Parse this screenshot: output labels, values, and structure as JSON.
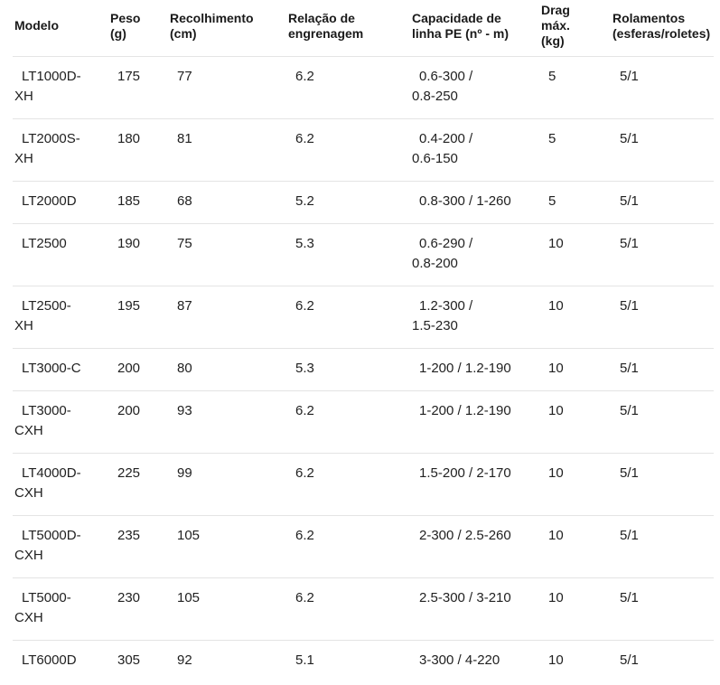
{
  "colors": {
    "background": "#ffffff",
    "header_text": "#1a1a1a",
    "body_text": "#212121",
    "divider": "#e4e4e4"
  },
  "table": {
    "columns": [
      {
        "id": "modelo",
        "label": "Modelo"
      },
      {
        "id": "peso",
        "label": "Peso\n(g)"
      },
      {
        "id": "recolhimento",
        "label": "Recolhimento\n(cm)"
      },
      {
        "id": "relacao",
        "label": "Relação de\nengrenagem"
      },
      {
        "id": "capacidade",
        "label": "Capacidade de\nlinha PE (nº - m)"
      },
      {
        "id": "drag",
        "label": "Drag\nmáx.\n(kg)"
      },
      {
        "id": "rolamentos",
        "label": "Rolamentos\n(esferas/roletes)"
      }
    ],
    "rows": [
      [
        "LT1000D-\nXH",
        "175",
        "77",
        "6.2",
        "0.6-300 /\n0.8-250",
        "5",
        "5/1"
      ],
      [
        "LT2000S-\nXH",
        "180",
        "81",
        "6.2",
        "0.4-200 /\n0.6-150",
        "5",
        "5/1"
      ],
      [
        "LT2000D",
        "185",
        "68",
        "5.2",
        "0.8-300 / 1-260",
        "5",
        "5/1"
      ],
      [
        "LT2500",
        "190",
        "75",
        "5.3",
        "0.6-290 /\n0.8-200",
        "10",
        "5/1"
      ],
      [
        "LT2500-\nXH",
        "195",
        "87",
        "6.2",
        "1.2-300 /\n1.5-230",
        "10",
        "5/1"
      ],
      [
        "LT3000-C",
        "200",
        "80",
        "5.3",
        "1-200 / 1.2-190",
        "10",
        "5/1"
      ],
      [
        "LT3000-\nCXH",
        "200",
        "93",
        "6.2",
        "1-200 / 1.2-190",
        "10",
        "5/1"
      ],
      [
        "LT4000D-\nCXH",
        "225",
        "99",
        "6.2",
        "1.5-200 / 2-170",
        "10",
        "5/1"
      ],
      [
        "LT5000D-\nCXH",
        "235",
        "105",
        "6.2",
        "2-300 / 2.5-260",
        "10",
        "5/1"
      ],
      [
        "LT5000-\nCXH",
        "230",
        "105",
        "6.2",
        "2.5-300 / 3-210",
        "10",
        "5/1"
      ],
      [
        "LT6000D",
        "305",
        "92",
        "5.1",
        "3-300 / 4-220",
        "10",
        "5/1"
      ]
    ]
  }
}
